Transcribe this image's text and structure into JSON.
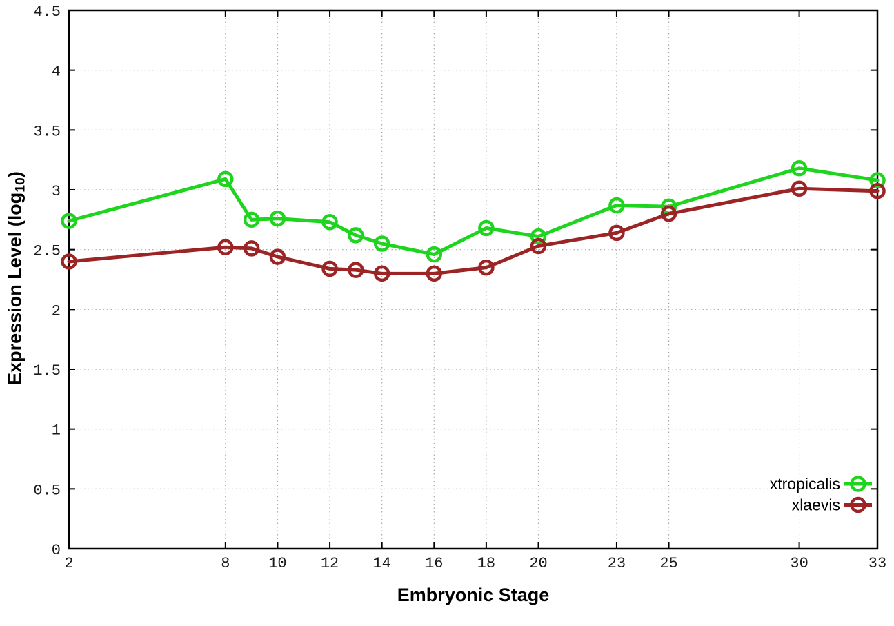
{
  "chart_data": {
    "type": "line",
    "title": "",
    "xlabel": "Embryonic Stage",
    "ylabel": {
      "prefix": "Expression Level (log",
      "sub": "10",
      "suffix": ")"
    },
    "x": [
      2,
      8,
      9,
      10,
      12,
      13,
      14,
      16,
      18,
      20,
      23,
      25,
      30,
      33
    ],
    "series": [
      {
        "name": "xtropicalis",
        "color": "#1ed41e",
        "values": [
          2.74,
          3.09,
          2.75,
          2.76,
          2.73,
          2.62,
          2.55,
          2.46,
          2.68,
          2.61,
          2.87,
          2.86,
          3.18,
          3.08
        ]
      },
      {
        "name": "xlaevis",
        "color": "#9c2424",
        "values": [
          2.4,
          2.52,
          2.51,
          2.44,
          2.34,
          2.33,
          2.3,
          2.3,
          2.35,
          2.53,
          2.64,
          2.8,
          3.01,
          2.99
        ]
      }
    ],
    "xlim": [
      2,
      33
    ],
    "ylim": [
      0,
      4.5
    ],
    "x_ticks": [
      2,
      8,
      10,
      12,
      14,
      16,
      18,
      20,
      23,
      25,
      30,
      33
    ],
    "y_ticks": [
      0,
      0.5,
      1,
      1.5,
      2,
      2.5,
      3,
      3.5,
      4,
      4.5
    ],
    "y_tick_labels": [
      "0",
      "0.5",
      "1",
      "1.5",
      "2",
      "2.5",
      "3",
      "3.5",
      "4",
      "4.5"
    ],
    "grid": true,
    "legend_position": "bottom-right",
    "marker": "open-circle",
    "colors": {
      "border": "#000000",
      "grid": "#a8a8a8",
      "tick_text": "#1a1a1a"
    }
  }
}
